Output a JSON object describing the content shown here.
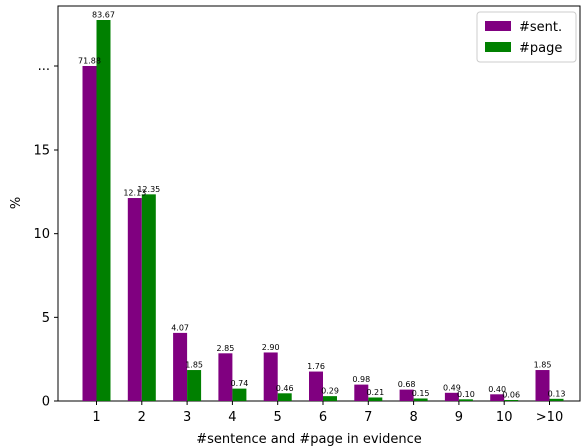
{
  "chart_data": {
    "type": "bar",
    "title": "",
    "xlabel": "#sentence and #page in evidence",
    "ylabel": "%",
    "categories": [
      "1",
      "2",
      "3",
      "4",
      "5",
      "6",
      "7",
      "8",
      "9",
      "10",
      ">10"
    ],
    "series": [
      {
        "name": "#sent.",
        "color": "#800080",
        "values": [
          71.88,
          12.13,
          4.07,
          2.85,
          2.9,
          1.76,
          0.98,
          0.68,
          0.49,
          0.4,
          1.85
        ],
        "labels": [
          "71.88",
          "12.13",
          "4.07",
          "2.85",
          "2.90",
          "1.76",
          "0.98",
          "0.68",
          "0.49",
          "0.40",
          "1.85"
        ]
      },
      {
        "name": "#page",
        "color": "#008000",
        "values": [
          83.67,
          12.35,
          1.85,
          0.74,
          0.46,
          0.29,
          0.21,
          0.15,
          0.1,
          0.06,
          0.13
        ],
        "labels": [
          "83.67",
          "12.35",
          "1.85",
          "0.74",
          "0.46",
          "0.29",
          "0.21",
          "0.15",
          "0.10",
          "0.06",
          "0.13"
        ]
      }
    ],
    "yaxis": {
      "scale": "broken",
      "lower_ticks": [
        {
          "value": 0,
          "label": "0"
        },
        {
          "value": 5,
          "label": "5"
        },
        {
          "value": 10,
          "label": "10"
        },
        {
          "value": 15,
          "label": "15"
        }
      ],
      "break_tick_label": "...",
      "break_value": 71.88,
      "top_value": 83.67
    },
    "legend": {
      "position": "top-right"
    },
    "grid": false
  }
}
